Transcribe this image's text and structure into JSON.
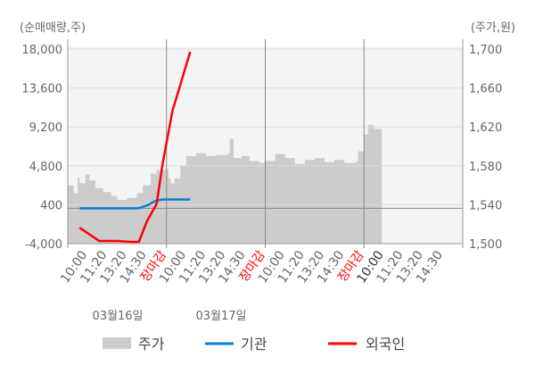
{
  "chart_data": {
    "type": "line",
    "left_unit": "(순매매량,주)",
    "right_unit": "(주가,원)",
    "left_ticks": [
      "18,000",
      "13,600",
      "9,200",
      "4,800",
      "400",
      "-4,000"
    ],
    "left_values": [
      18000,
      13600,
      9200,
      4800,
      400,
      -4000
    ],
    "left_range": [
      -4000,
      18000
    ],
    "right_ticks": [
      "1,700",
      "1,660",
      "1,620",
      "1,580",
      "1,540",
      "1,500"
    ],
    "right_values": [
      1700,
      1660,
      1620,
      1580,
      1540,
      1500
    ],
    "right_range": [
      1500,
      1700
    ],
    "x_labels": [
      "10:00",
      "11:20",
      "13:20",
      "14:30",
      "장마감",
      "10:00",
      "11:20",
      "13:20",
      "14:30",
      "장마감",
      "10:00",
      "11:20",
      "13:20",
      "14:30",
      "장마감",
      "10:00",
      "11:20",
      "13:20",
      "14:30"
    ],
    "x_label_colors": [
      "#666",
      "#666",
      "#666",
      "#666",
      "#ff0000",
      "#666",
      "#666",
      "#666",
      "#666",
      "#ff0000",
      "#666",
      "#666",
      "#666",
      "#666",
      "#ff0000",
      "#333",
      "#666",
      "#666",
      "#666"
    ],
    "dates": [
      "03월16일",
      "03월17일"
    ],
    "reference_value": 0,
    "series": [
      {
        "name": "주가",
        "kind": "area",
        "axis": "right",
        "color": "#cccccc",
        "x": [
          0,
          0.3,
          0.5,
          0.6,
          0.9,
          1.1,
          1.4,
          1.8,
          2.2,
          2.5,
          3.0,
          3.5,
          3.8,
          4.2,
          4.5,
          4.6,
          4.7,
          5.1,
          5.2,
          5.4,
          5.7,
          6.0,
          6.5,
          7.0,
          7.5,
          8.1,
          8.2,
          8.4,
          8.8,
          9.2,
          9.7,
          10.0,
          10.5,
          11.0,
          11.5,
          12.0,
          12.5,
          13.0,
          13.5,
          14.0,
          14.6,
          14.7,
          15.0,
          15.2,
          15.5,
          15.9
        ],
        "y": [
          1560,
          1552,
          1568,
          1562,
          1571,
          1565,
          1557,
          1553,
          1549,
          1545,
          1547,
          1552,
          1560,
          1572,
          1576,
          1575,
          1576,
          1567,
          1562,
          1567,
          1580,
          1590,
          1593,
          1590,
          1591,
          1593,
          1608,
          1588,
          1590,
          1585,
          1583,
          1585,
          1592,
          1588,
          1582,
          1586,
          1588,
          1584,
          1586,
          1583,
          1585,
          1595,
          1612,
          1622,
          1618,
          1613
        ]
      },
      {
        "name": "기관",
        "kind": "line",
        "axis": "left",
        "color": "#0a7fcf",
        "x": [
          0.6,
          1.5,
          2.5,
          3.6,
          4.1,
          4.4,
          4.8,
          5.1,
          5.6,
          6.2
        ],
        "y": [
          0,
          0,
          0,
          0,
          400,
          800,
          1000,
          1000,
          1000,
          1000
        ]
      },
      {
        "name": "외국인",
        "kind": "line",
        "axis": "left",
        "color": "#ff0000",
        "x": [
          0.6,
          1.6,
          2.5,
          3.2,
          3.6,
          4.0,
          4.5,
          4.8,
          5.3,
          6.2
        ],
        "y": [
          -2200,
          -3700,
          -3700,
          -3800,
          -3800,
          -1500,
          500,
          5000,
          11000,
          17700
        ]
      }
    ],
    "legend": {
      "position": "bottom",
      "items": [
        "주가",
        "기관",
        "외국인"
      ]
    },
    "grid": true,
    "plot_background": "#f4f4f4"
  }
}
